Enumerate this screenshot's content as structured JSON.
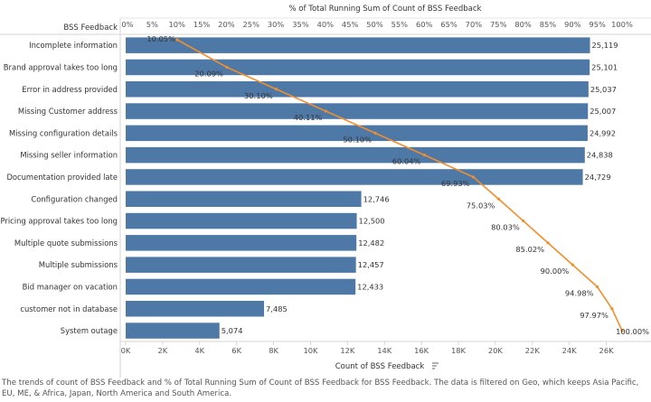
{
  "chart_data": {
    "type": "bar",
    "orientation": "horizontal",
    "row_header": "BSS Feedback",
    "title": "% of Total Running Sum of Count of BSS Feedback",
    "xlabel": "Count of BSS Feedback",
    "sort_icon": "sort-descending-icon",
    "xlim": [
      0,
      27000
    ],
    "x_ticks": [
      "0K",
      "2K",
      "4K",
      "6K",
      "8K",
      "10K",
      "12K",
      "14K",
      "16K",
      "18K",
      "20K",
      "22K",
      "24K",
      "26K"
    ],
    "x_tick_values": [
      0,
      2000,
      4000,
      6000,
      8000,
      10000,
      12000,
      14000,
      16000,
      18000,
      20000,
      22000,
      24000,
      26000
    ],
    "pct_ticks": [
      "0%",
      "5%",
      "10%",
      "15%",
      "20%",
      "25%",
      "30%",
      "35%",
      "40%",
      "45%",
      "50%",
      "55%",
      "60%",
      "65%",
      "70%",
      "75%",
      "80%",
      "85%",
      "90%",
      "95%",
      "100%"
    ],
    "pct_tick_values": [
      0,
      5,
      10,
      15,
      20,
      25,
      30,
      35,
      40,
      45,
      50,
      55,
      60,
      65,
      70,
      75,
      80,
      85,
      90,
      95,
      100
    ],
    "categories": [
      "Incomplete information",
      "Brand approval takes too long",
      "Error in address provided",
      "Missing Customer address",
      "Missing configuration details",
      "Missing seller information",
      "Documentation provided late",
      "Configuration changed",
      "Pricing approval takes too long",
      "Multiple quote submissions",
      "Multiple submissions",
      "Bid manager on vacation",
      "customer not in database",
      "System outage"
    ],
    "values": [
      25119,
      25101,
      25037,
      25007,
      24992,
      24838,
      24729,
      12746,
      12500,
      12482,
      12457,
      12433,
      7485,
      5074
    ],
    "value_labels": [
      "25,119",
      "25,101",
      "25,037",
      "25,007",
      "24,992",
      "24,838",
      "24,729",
      "12,746",
      "12,500",
      "12,482",
      "12,457",
      "12,433",
      "7,485",
      "5,074"
    ],
    "running_pct": [
      10.05,
      20.09,
      30.1,
      40.11,
      50.1,
      60.04,
      69.93,
      75.03,
      80.03,
      85.02,
      90.0,
      94.98,
      97.97,
      100.0
    ],
    "running_pct_labels": [
      "10.05%",
      "20.09%",
      "30.10%",
      "40.11%",
      "50.10%",
      "60.04%",
      "69.93%",
      "75.03%",
      "80.03%",
      "85.02%",
      "90.00%",
      "94.98%",
      "97.97%",
      "100.00%"
    ],
    "grid": false,
    "colors": {
      "bar": "#4e79a7",
      "line": "#f28e2b"
    }
  },
  "caption": "The trends of count of BSS Feedback and % of Total Running Sum of Count of BSS Feedback for BSS Feedback. The data is filtered on Geo, which keeps Asia Pacific, EU, ME, & Africa, Japan, North America and South America."
}
